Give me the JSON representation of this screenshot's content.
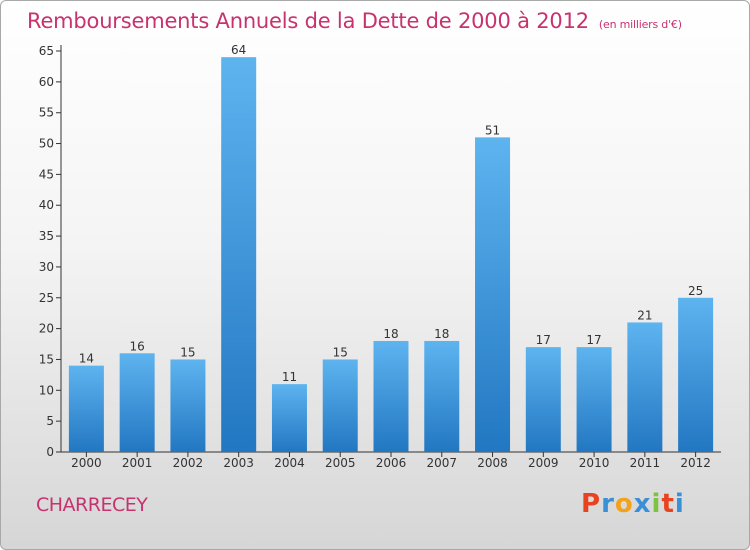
{
  "title": "Remboursements Annuels de la Dette de 2000 à 2012",
  "unit": "(en milliers d'€)",
  "town": "CHARRECEY",
  "logo": {
    "letters": [
      "P",
      "r",
      "o",
      "x",
      "i",
      "t",
      "i"
    ],
    "colors": [
      "#e8421f",
      "#3a8fd6",
      "#f2a21b",
      "#3a8fd6",
      "#7cc243",
      "#e8421f",
      "#3a8fd6"
    ]
  },
  "colors": {
    "title": "#c8326f",
    "bar_top": "#5eb4ef",
    "bar_bottom": "#2277c2"
  },
  "chart_data": {
    "type": "bar",
    "title": "Remboursements Annuels de la Dette de 2000 à 2012",
    "categories": [
      "2000",
      "2001",
      "2002",
      "2003",
      "2004",
      "2005",
      "2006",
      "2007",
      "2008",
      "2009",
      "2010",
      "2011",
      "2012"
    ],
    "values": [
      14,
      16,
      15,
      64,
      11,
      15,
      18,
      18,
      51,
      17,
      17,
      21,
      25
    ],
    "ylim": [
      0,
      65
    ],
    "yticks": [
      0,
      5,
      10,
      15,
      20,
      25,
      30,
      35,
      40,
      45,
      50,
      55,
      60,
      65
    ],
    "grid": false,
    "data_labels": true
  }
}
